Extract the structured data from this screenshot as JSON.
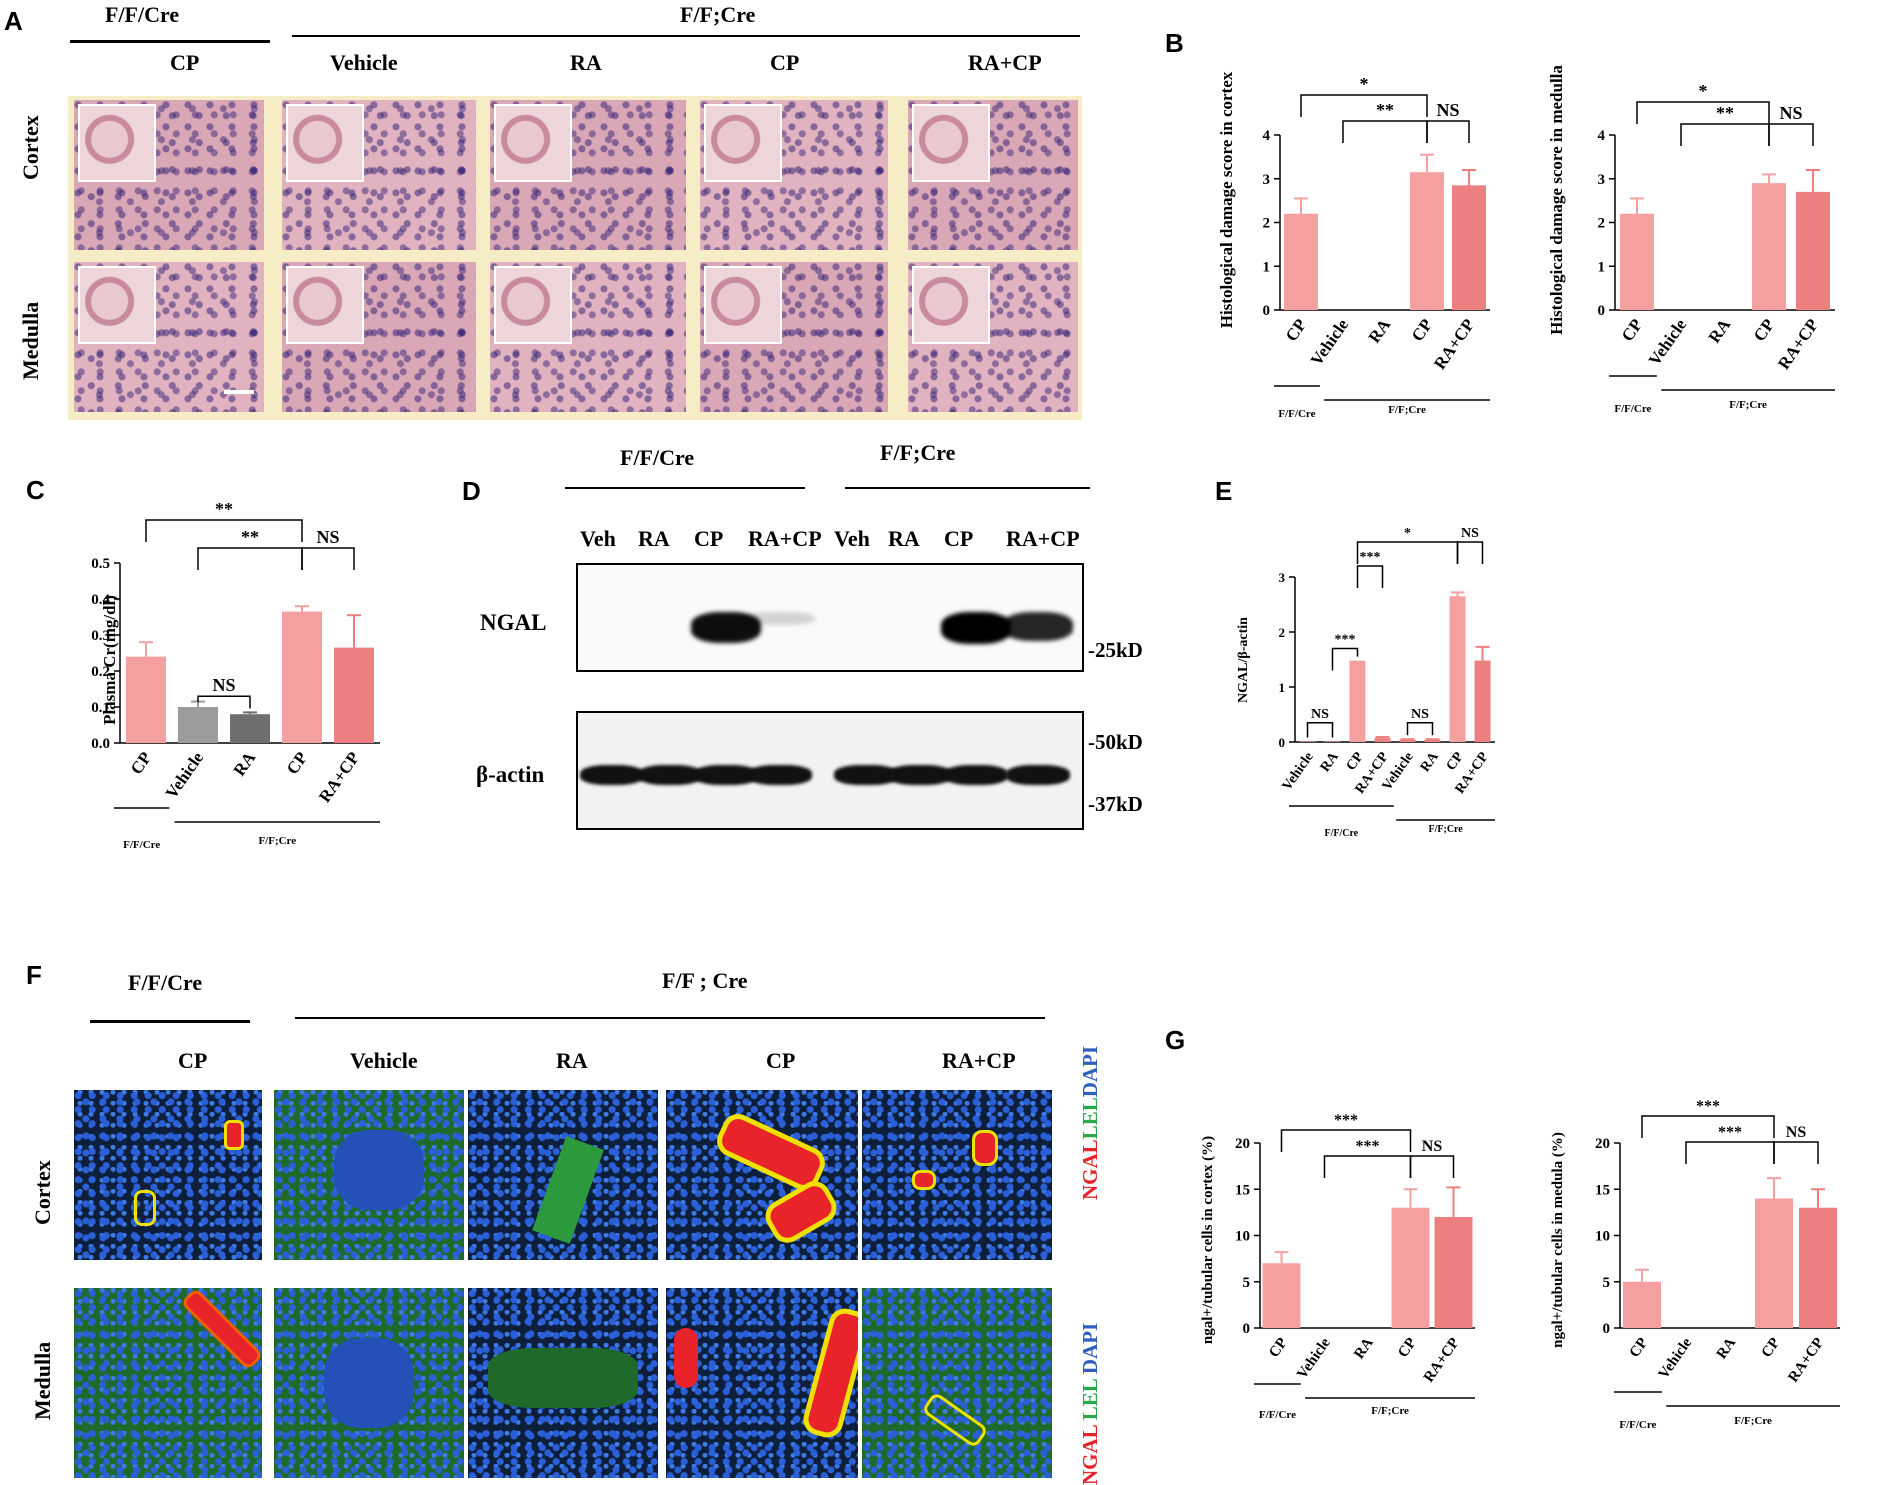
{
  "panel_letters": {
    "A": "A",
    "B": "B",
    "C": "C",
    "D": "D",
    "E": "E",
    "F": "F",
    "G": "G"
  },
  "groups": {
    "ffcre_slash": "F/F/Cre",
    "ffcre_semi": "F/F;Cre",
    "ffcre_semi_spaced": "F/F ; Cre"
  },
  "conditions": {
    "cp": "CP",
    "vehicle": "Vehicle",
    "ra": "RA",
    "racp": "RA+CP",
    "veh": "Veh"
  },
  "regions": {
    "cortex": "Cortex",
    "medulla": "Medulla"
  },
  "sig": {
    "one": "*",
    "two": "**",
    "three": "***",
    "ns": "NS"
  },
  "western": {
    "ngal": "NGAL",
    "bactin": "β-actin",
    "lanes": [
      "Veh",
      "RA",
      "CP",
      "RA+CP",
      "Veh",
      "RA",
      "CP",
      "RA+CP"
    ],
    "ngal_band_intensity": [
      0,
      0,
      0.95,
      0.15,
      0,
      0,
      1.0,
      0.85
    ],
    "markers": {
      "m25": "-25kD",
      "m50": "-50kD",
      "m37": "-37kD"
    }
  },
  "f_stain": {
    "cortex": [
      "NGAL",
      "LEL",
      "DAPI"
    ],
    "medulla": [
      "NGAL",
      "LEL",
      "DAPI"
    ],
    "colors": {
      "NGAL": "#e8232a",
      "LEL": "#2aa84a",
      "DAPI": "#2f5fbf"
    }
  },
  "colors": {
    "bar_light": "#f4a0a0",
    "bar_dark": "#ee7f80",
    "bar_gray": "#9b9b9b",
    "bar_dgray": "#6f6f6f"
  },
  "chart_data": [
    {
      "panel": "B-left",
      "type": "bar",
      "ylabel": "Histological damage score in cortex",
      "categories": [
        "CP",
        "Vehicle",
        "RA",
        "CP",
        "RA+CP"
      ],
      "values": [
        2.2,
        0,
        0,
        3.15,
        2.85
      ],
      "errors": [
        0.35,
        0,
        0,
        0.4,
        0.35
      ],
      "ylim": [
        0,
        4
      ],
      "yticks": [
        "0",
        "1",
        "2",
        "3",
        "4"
      ],
      "groups": [
        "F/F/Cre",
        "F/F;Cre"
      ],
      "brackets": [
        {
          "from": 0,
          "to": 3,
          "label": "*"
        },
        {
          "from": 1,
          "to": 3,
          "label": "**"
        },
        {
          "from": 3,
          "to": 4,
          "label": "NS"
        }
      ]
    },
    {
      "panel": "B-right",
      "type": "bar",
      "ylabel": "Histological damage score in medulla",
      "categories": [
        "CP",
        "Vehicle",
        "RA",
        "CP",
        "RA+CP"
      ],
      "values": [
        2.2,
        0,
        0,
        2.9,
        2.7
      ],
      "errors": [
        0.35,
        0,
        0,
        0.2,
        0.5
      ],
      "ylim": [
        0,
        4
      ],
      "yticks": [
        "0",
        "1",
        "2",
        "3",
        "4"
      ],
      "groups": [
        "F/F/Cre",
        "F/F;Cre"
      ],
      "brackets": [
        {
          "from": 0,
          "to": 3,
          "label": "*"
        },
        {
          "from": 1,
          "to": 3,
          "label": "**"
        },
        {
          "from": 3,
          "to": 4,
          "label": "NS"
        }
      ]
    },
    {
      "panel": "C",
      "type": "bar",
      "ylabel": "Plasma Cr(mg/dl)",
      "categories": [
        "CP",
        "Vehicle",
        "RA",
        "CP",
        "RA+CP"
      ],
      "values": [
        0.24,
        0.1,
        0.08,
        0.365,
        0.265
      ],
      "errors": [
        0.04,
        0.015,
        0.005,
        0.015,
        0.09
      ],
      "ylim": [
        0,
        0.5
      ],
      "yticks": [
        "0.0",
        "0.1",
        "0.2",
        "0.3",
        "0.4",
        "0.5"
      ],
      "groups": [
        "F/F/Cre",
        "F/F;Cre"
      ],
      "brackets": [
        {
          "from": 0,
          "to": 3,
          "label": "**"
        },
        {
          "from": 1,
          "to": 3,
          "label": "**"
        },
        {
          "from": 3,
          "to": 4,
          "label": "NS"
        },
        {
          "from": 1,
          "to": 2,
          "label": "NS"
        }
      ]
    },
    {
      "panel": "E",
      "type": "bar",
      "ylabel": "NGAL/β-actin",
      "categories": [
        "Vehicle",
        "RA",
        "CP",
        "RA+CP",
        "Vehicle",
        "RA",
        "CP",
        "RA+CP"
      ],
      "values": [
        0.01,
        0.01,
        1.48,
        0.07,
        0.04,
        0.04,
        2.65,
        1.48
      ],
      "errors": [
        0,
        0,
        0,
        0.02,
        0.01,
        0.01,
        0.07,
        0.25
      ],
      "ylim": [
        0,
        3
      ],
      "yticks": [
        "0",
        "1",
        "2",
        "3"
      ],
      "groups": [
        "F/F/Cre",
        "F/F;Cre"
      ],
      "brackets": [
        {
          "from": 2,
          "to": 6,
          "label": "*"
        },
        {
          "from": 2,
          "to": 3,
          "label": "***"
        },
        {
          "from": 1,
          "to": 2,
          "label": "***"
        },
        {
          "from": 6,
          "to": 7,
          "label": "NS"
        },
        {
          "from": 0,
          "to": 1,
          "label": "NS"
        },
        {
          "from": 4,
          "to": 5,
          "label": "NS"
        }
      ]
    },
    {
      "panel": "G-left",
      "type": "bar",
      "ylabel": "ngal+/tubular cells in cortex (%)",
      "categories": [
        "CP",
        "Vehicle",
        "RA",
        "CP",
        "RA+CP"
      ],
      "values": [
        7,
        0,
        0,
        13,
        12
      ],
      "errors": [
        1.2,
        0,
        0,
        2,
        3.2
      ],
      "ylim": [
        0,
        20
      ],
      "yticks": [
        "0",
        "5",
        "10",
        "15",
        "20"
      ],
      "groups": [
        "F/F/Cre",
        "F/F;Cre"
      ],
      "brackets": [
        {
          "from": 0,
          "to": 3,
          "label": "***"
        },
        {
          "from": 1,
          "to": 3,
          "label": "***"
        },
        {
          "from": 3,
          "to": 4,
          "label": "NS"
        }
      ]
    },
    {
      "panel": "G-right",
      "type": "bar",
      "ylabel": "ngal+/tubular cells in medula (%)",
      "categories": [
        "CP",
        "Vehicle",
        "RA",
        "CP",
        "RA+CP"
      ],
      "values": [
        5,
        0,
        0,
        14,
        13
      ],
      "errors": [
        1.3,
        0,
        0,
        2.2,
        2
      ],
      "ylim": [
        0,
        20
      ],
      "yticks": [
        "0",
        "5",
        "10",
        "15",
        "20"
      ],
      "groups": [
        "F/F/Cre",
        "F/F;Cre"
      ],
      "brackets": [
        {
          "from": 0,
          "to": 3,
          "label": "***"
        },
        {
          "from": 1,
          "to": 3,
          "label": "***"
        },
        {
          "from": 3,
          "to": 4,
          "label": "NS"
        }
      ]
    }
  ]
}
